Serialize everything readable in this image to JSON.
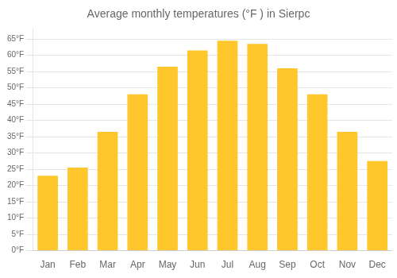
{
  "chart_data": {
    "type": "bar",
    "title": "Average monthly temperatures (°F ) in Sierpc",
    "categories": [
      "Jan",
      "Feb",
      "Mar",
      "Apr",
      "May",
      "Jun",
      "Jul",
      "Aug",
      "Sep",
      "Oct",
      "Nov",
      "Dec"
    ],
    "values": [
      23,
      25.5,
      36.5,
      48,
      56.5,
      61.5,
      64.5,
      63.5,
      56,
      48,
      36.5,
      27.5
    ],
    "color": "#FFC72C",
    "ylim": [
      0,
      68
    ],
    "yticks": [
      {
        "value": 0,
        "label": "0°F"
      },
      {
        "value": 5,
        "label": "5°F"
      },
      {
        "value": 10,
        "label": "10°F"
      },
      {
        "value": 15,
        "label": "15°F"
      },
      {
        "value": 20,
        "label": "20°F"
      },
      {
        "value": 25,
        "label": "25°F"
      },
      {
        "value": 30,
        "label": "30°F"
      },
      {
        "value": 35,
        "label": "35°F"
      },
      {
        "value": 40,
        "label": "40°F"
      },
      {
        "value": 45,
        "label": "45°F"
      },
      {
        "value": 50,
        "label": "50°F"
      },
      {
        "value": 55,
        "label": "55°F"
      },
      {
        "value": 60,
        "label": "60°F"
      },
      {
        "value": 65,
        "label": "65°F"
      }
    ],
    "grid": true
  }
}
